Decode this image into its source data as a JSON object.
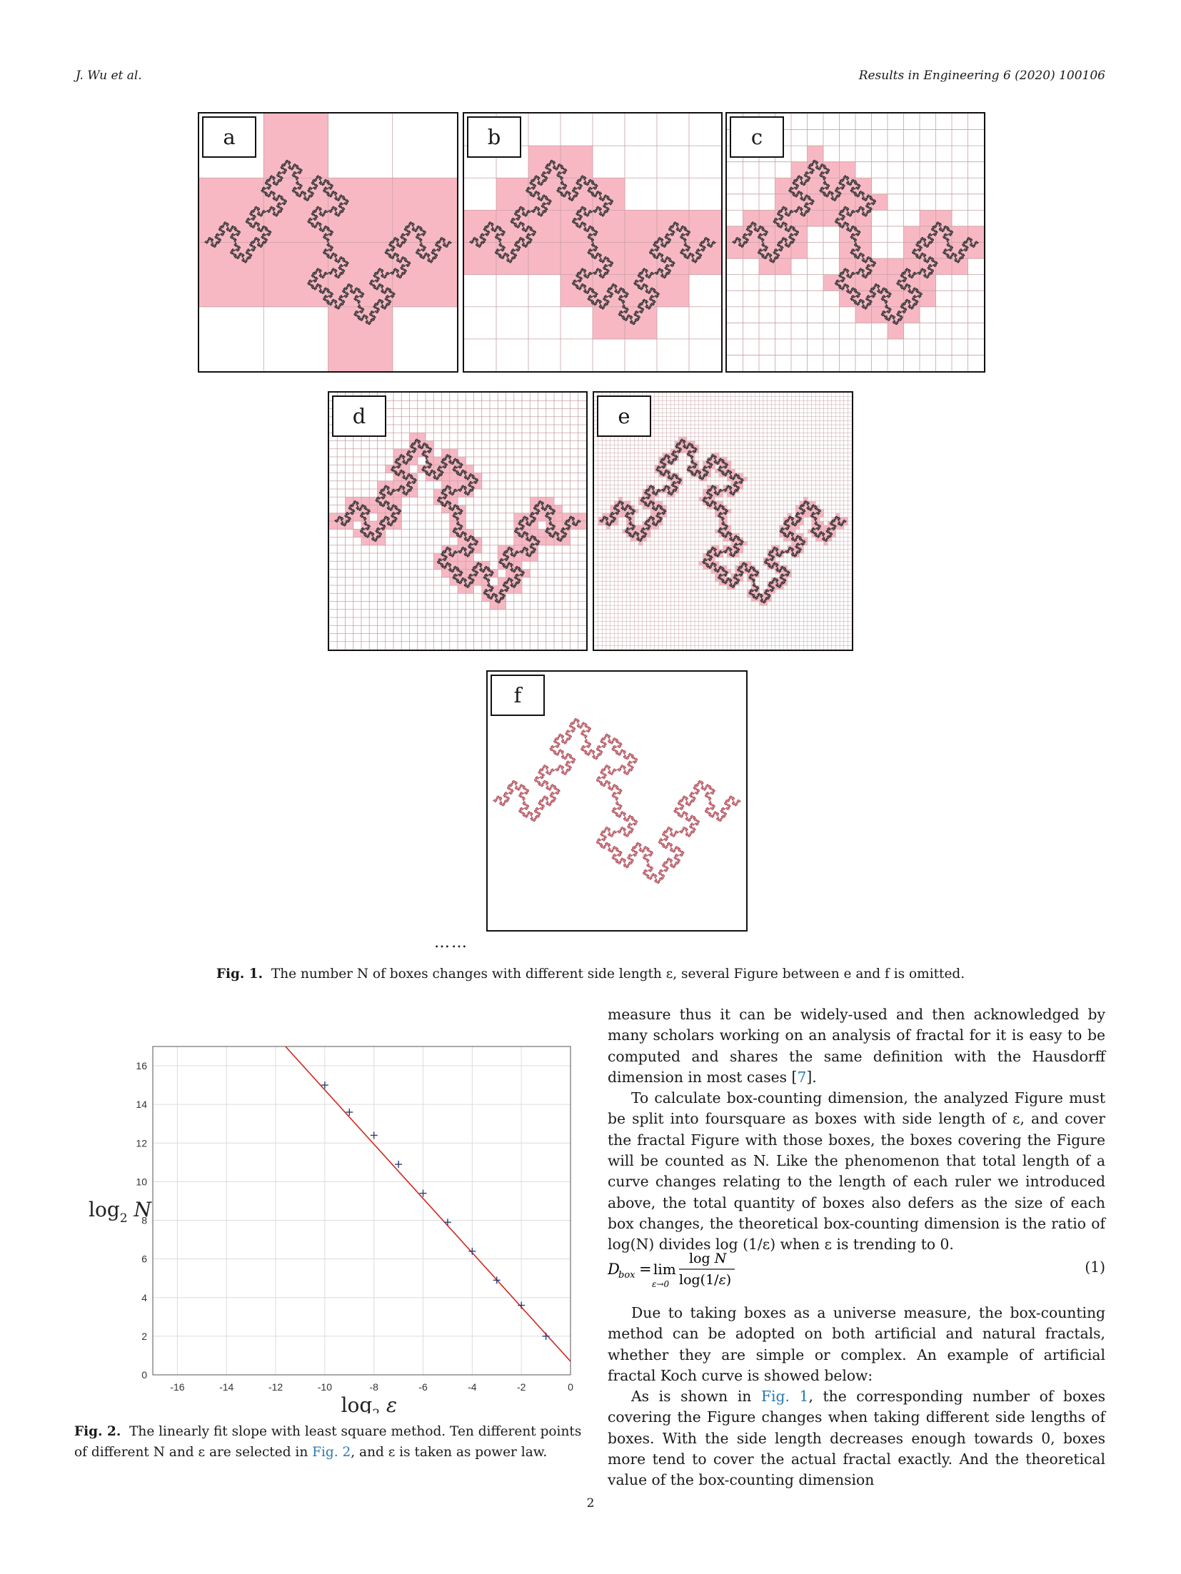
{
  "header": {
    "authors": "J. Wu et al.",
    "journal": "Results in Engineering 6 (2020) 100106"
  },
  "figure1": {
    "panels": [
      "a",
      "b",
      "c",
      "d",
      "e",
      "f"
    ],
    "ellipsis": "……",
    "caption_label": "Fig. 1.",
    "caption_text": "The number N of boxes changes with different side length ε, several Figure between e and f is omitted.",
    "fill_color": "#f7b8c4",
    "grid_color": "#c9a0a6"
  },
  "figure2": {
    "caption_label": "Fig. 2.",
    "caption_text_1": "The linearly fit slope with least square method. Ten different points of different N and ε are selected in ",
    "caption_link": "Fig. 2",
    "caption_text_2": ", and ε is taken as power law."
  },
  "chart_data": {
    "type": "scatter",
    "xlabel": "log2 ε",
    "ylabel": "log2 N",
    "xlim": [
      -17,
      0
    ],
    "ylim": [
      0,
      17
    ],
    "xticks": [
      -16,
      -14,
      -12,
      -10,
      -8,
      -6,
      -4,
      -2,
      0
    ],
    "yticks": [
      0,
      2,
      4,
      6,
      8,
      10,
      12,
      14,
      16
    ],
    "grid": true,
    "points": [
      {
        "x": -10,
        "y": 15.0
      },
      {
        "x": -9,
        "y": 13.6
      },
      {
        "x": -8,
        "y": 12.4
      },
      {
        "x": -7,
        "y": 10.9
      },
      {
        "x": -6,
        "y": 9.4
      },
      {
        "x": -5,
        "y": 7.9
      },
      {
        "x": -4,
        "y": 6.4
      },
      {
        "x": -3,
        "y": 4.9
      },
      {
        "x": -2,
        "y": 3.6
      },
      {
        "x": -1,
        "y": 2.0
      }
    ],
    "fit_line": {
      "x": [
        -11.6,
        0
      ],
      "y": [
        17.0,
        0.7
      ]
    },
    "point_color": "#2c3e7a",
    "line_color": "#d0271d"
  },
  "body": {
    "para1_text": "measure thus it can be widely-used and then acknowledged by many scholars working on an analysis of fractal for it is easy to be computed and shares the same definition with the Hausdorff dimension in most cases [",
    "para1_ref": "7",
    "para1_end": "].",
    "para2": "To calculate box-counting dimension, the analyzed Figure must be split into foursquare as boxes with side length of ε, and cover the fractal Figure with those boxes, the boxes covering the Figure will be counted as N. Like the phenomenon that total length of a curve changes relating to the length of each ruler we introduced above, the total quantity of boxes also defers as the size of each box changes, the theoretical box-counting dimension is the ratio of log(N) divides log (1/ε) when ε is trending to 0.",
    "equation_number": "(1)",
    "para3": "Due to taking boxes as a universe measure, the box-counting method can be adopted on both artificial and natural fractals, whether they are simple or complex. An example of artificial fractal Koch curve is showed below:",
    "para4_start": "As is shown in ",
    "para4_link": "Fig. 1",
    "para4_rest": ", the corresponding number of boxes covering the Figure changes when taking different side lengths of boxes. With the side length decreases enough towards 0, boxes more tend to cover the actual fractal exactly. And the theoretical value of the box-counting dimension"
  },
  "page_number": "2"
}
